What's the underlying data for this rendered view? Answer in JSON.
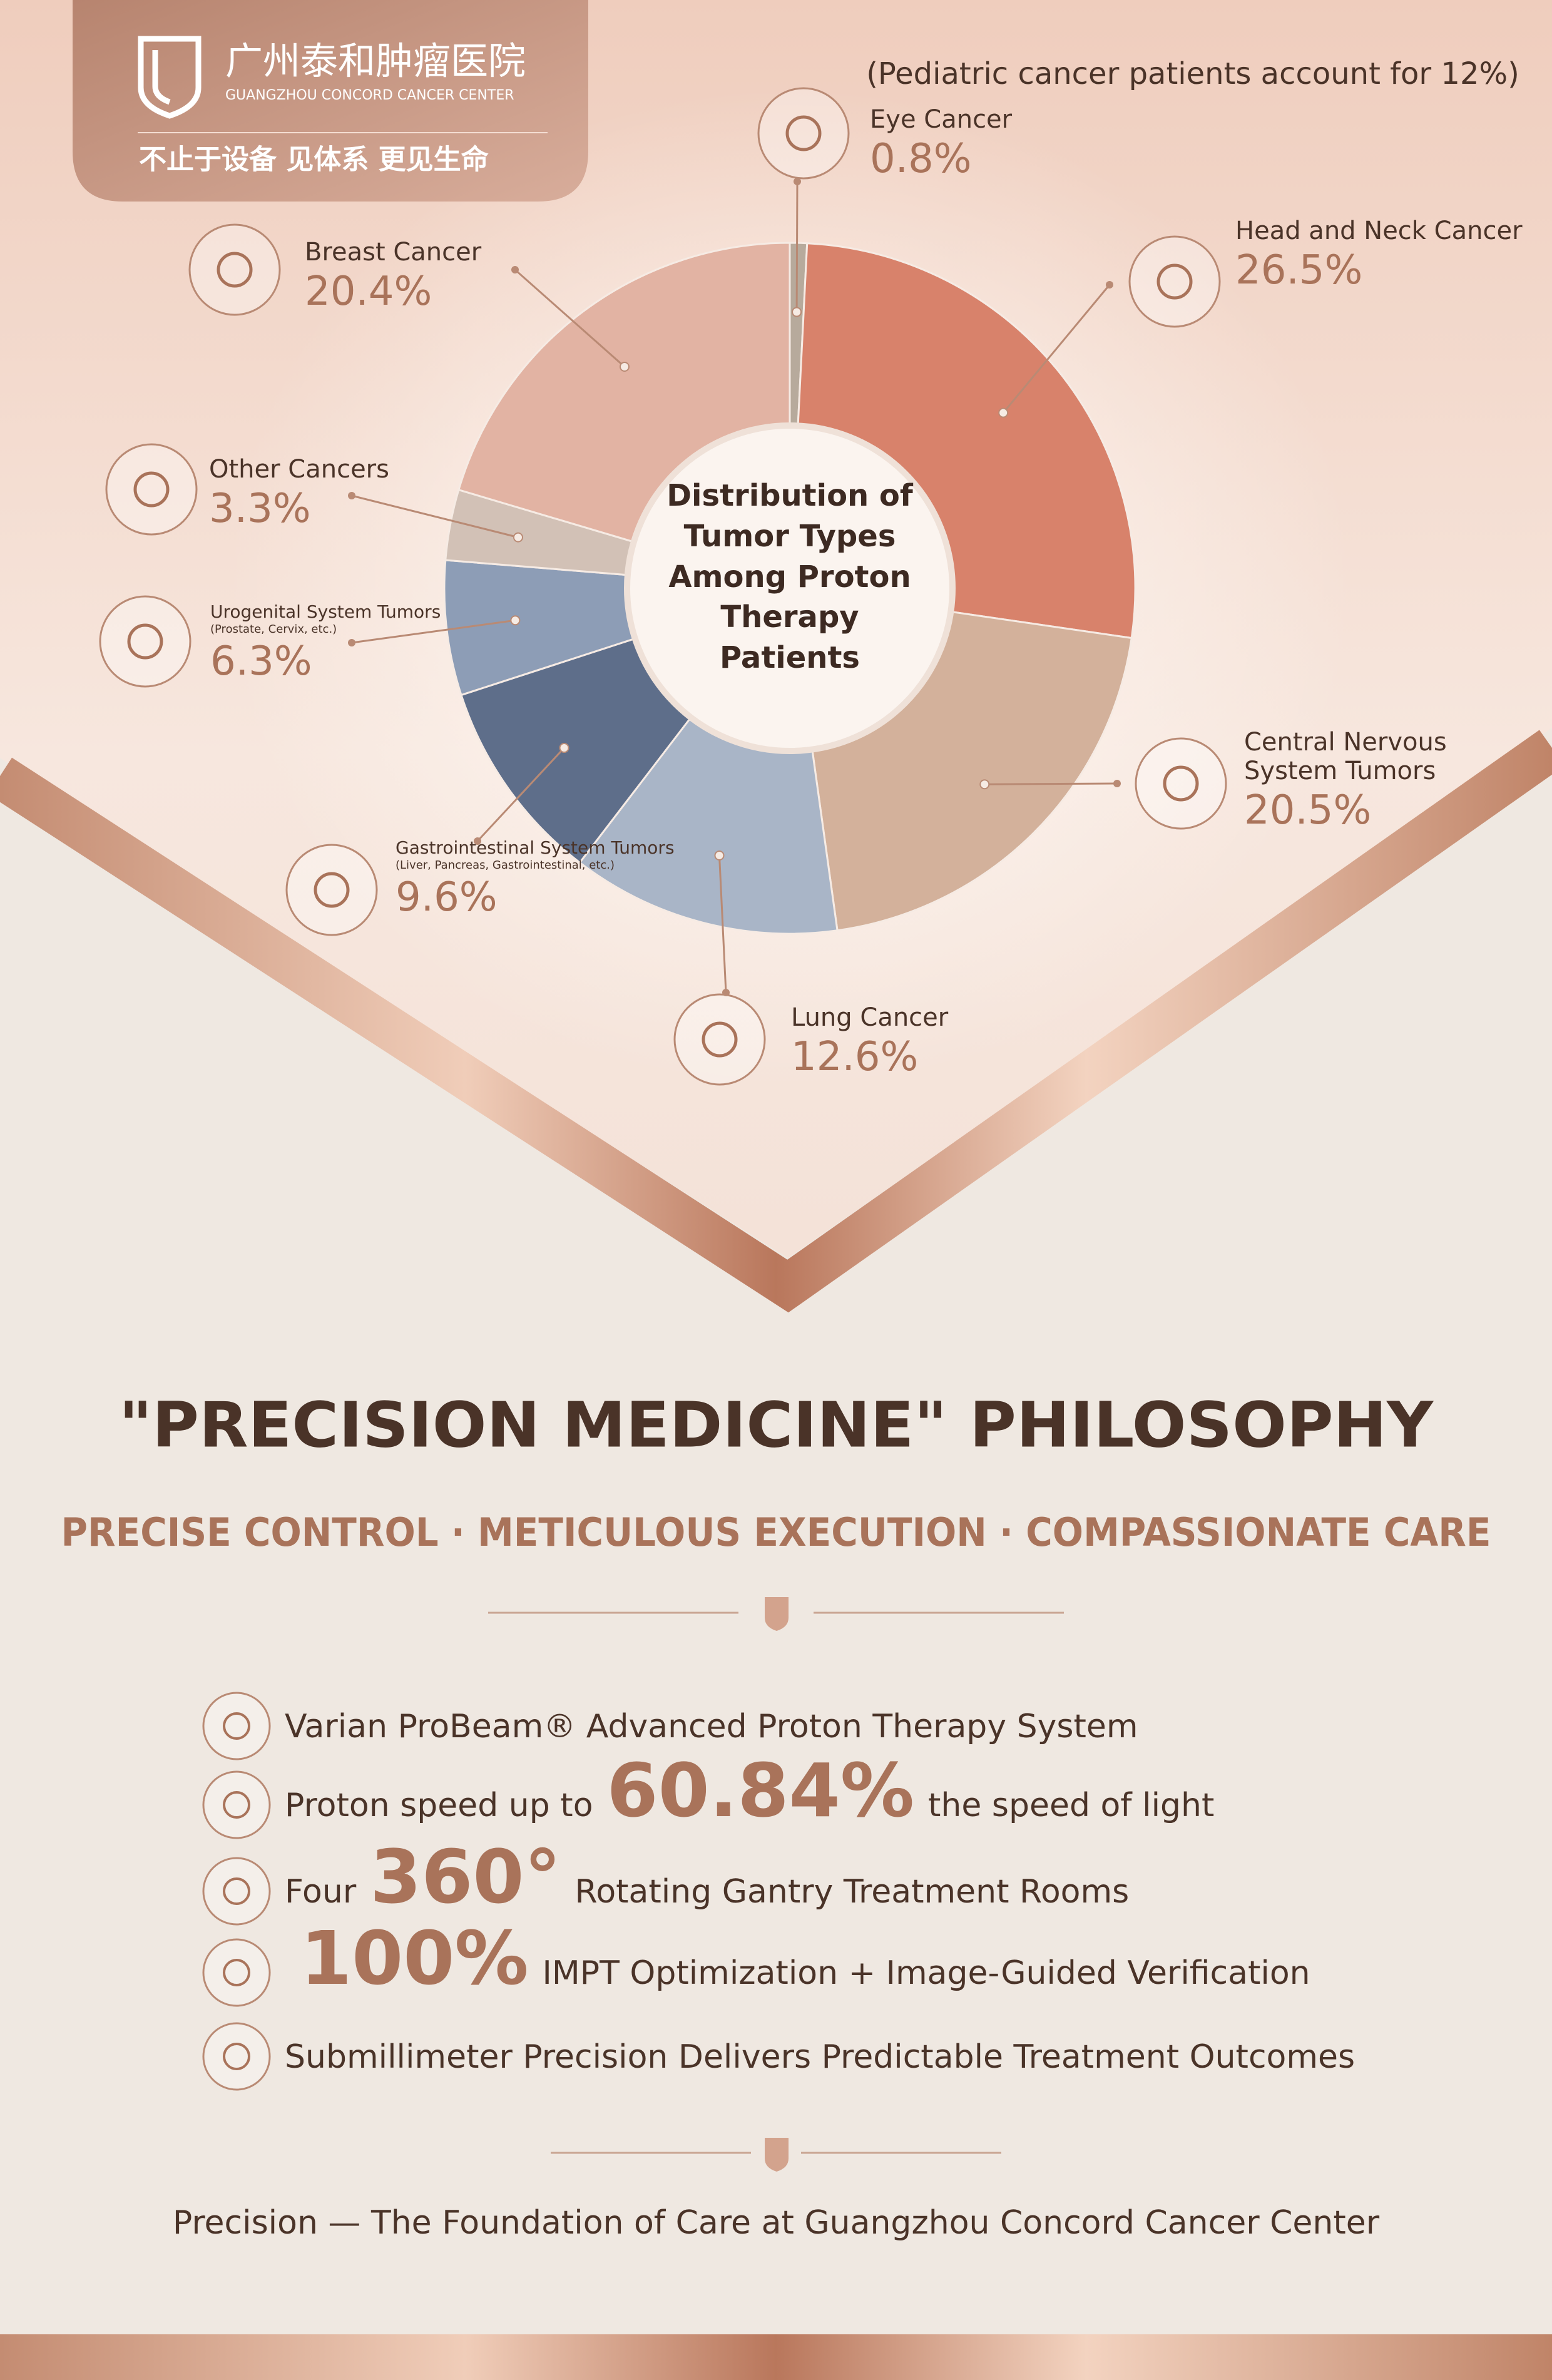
{
  "header": {
    "name_cn": "广州泰和肿瘤医院",
    "name_en": "GUANGZHOU CONCORD CANCER CENTER",
    "slogan": "不止于设备  见体系  更见生命"
  },
  "chart_data": {
    "type": "pie",
    "donut": true,
    "title": "Distribution of Tumor Types Among Proton Therapy Patients",
    "annotation": "(Pediatric cancer patients account for 12%)",
    "categories": [
      "Eye Cancer",
      "Head and Neck Cancer",
      "Central Nervous System Tumors",
      "Lung Cancer",
      "Gastrointestinal System Tumors",
      "Urogenital System Tumors",
      "Other Cancers",
      "Breast Cancer"
    ],
    "category_notes": [
      null,
      null,
      null,
      null,
      "(Liver, Pancreas, Gastrointestinal, etc.)",
      "(Prostate, Cervix, etc.)",
      null,
      null
    ],
    "values": [
      0.8,
      26.5,
      20.5,
      12.6,
      9.6,
      6.3,
      3.3,
      20.4
    ],
    "value_labels": [
      "0.8%",
      "26.5%",
      "20.5%",
      "12.6%",
      "9.6%",
      "6.3%",
      "3.3%",
      "20.4%"
    ],
    "colors": [
      "#b7aa9c",
      "#d8826b",
      "#d3b19b",
      "#a9b5c7",
      "#5e6e8a",
      "#8d9db6",
      "#d2c1b6",
      "#e2b3a3"
    ]
  },
  "heading": "\"PRECISION MEDICINE\" PHILOSOPHY",
  "subheading": "PRECISE CONTROL · METICULOUS EXECUTION · COMPASSIONATE CARE",
  "features": [
    [
      {
        "text": "Varian ProBeam® Advanced Proton Therapy System"
      }
    ],
    [
      {
        "text": "Proton speed up to"
      },
      {
        "text": "60.84%",
        "highlight": true
      },
      {
        "text": "the speed of light"
      }
    ],
    [
      {
        "text": "Four"
      },
      {
        "text": "360°",
        "highlight": true
      },
      {
        "text": "Rotating Gantry Treatment Rooms"
      }
    ],
    [
      {
        "text": "100%",
        "highlight": true
      },
      {
        "text": "IMPT  Optimization + Image-Guided Verification"
      }
    ],
    [
      {
        "text": "Submillimeter Precision Delivers Predictable Treatment Outcomes"
      }
    ]
  ],
  "footer": "Precision — The Foundation of Care at Guangzhou Concord Cancer Center"
}
